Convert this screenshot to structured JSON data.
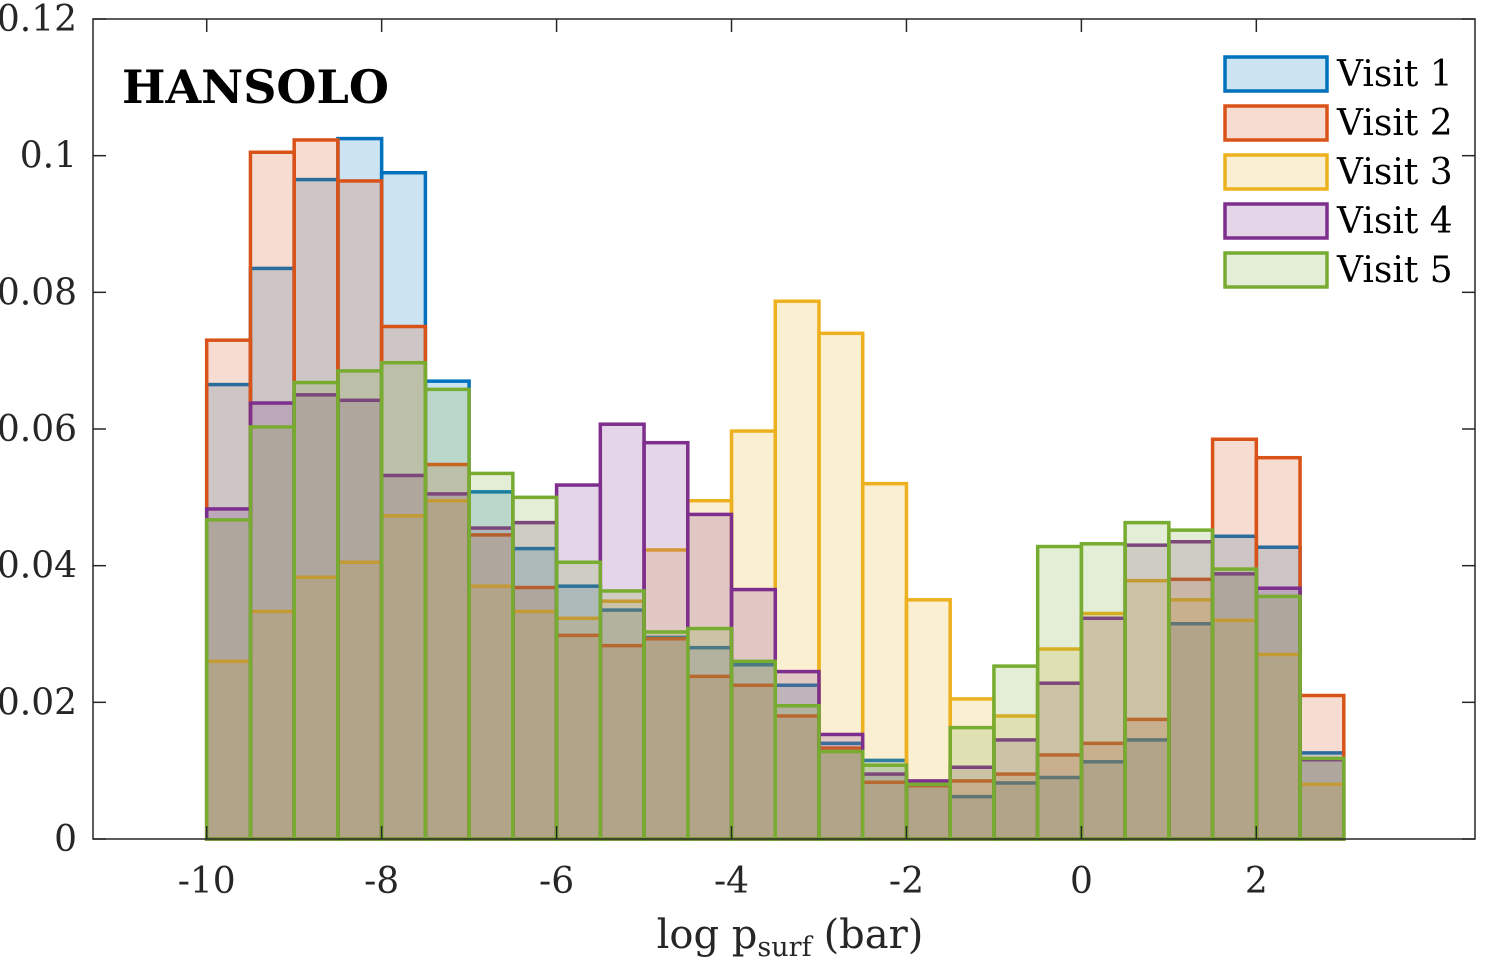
{
  "chart_data": {
    "type": "bar",
    "subtype": "overlaid-histogram",
    "title": "HANSOLO",
    "xlabel": {
      "main": "log p",
      "subscript": "surf",
      "unit": "(bar)"
    },
    "ylabel": "",
    "xlim": [
      -11.3,
      4.5
    ],
    "ylim": [
      0,
      0.12
    ],
    "bin_edges": [
      -10,
      -9.5,
      -9,
      -8.5,
      -8,
      -7.5,
      -7,
      -6.5,
      -6,
      -5.5,
      -5,
      -4.5,
      -4,
      -3.5,
      -3,
      -2.5,
      -2,
      -1.5,
      -1,
      -0.5,
      0,
      0.5,
      1,
      1.5,
      2,
      2.5,
      3
    ],
    "xticks": [
      -10,
      -8,
      -6,
      -4,
      -2,
      0,
      2
    ],
    "xtick_labels": [
      "-10",
      "-8",
      "-6",
      "-4",
      "-2",
      "0",
      "2"
    ],
    "yticks": [
      0,
      0.02,
      0.04,
      0.06,
      0.08,
      0.1,
      0.12
    ],
    "ytick_labels": [
      "0",
      "0.02",
      "0.04",
      "0.06",
      "0.08",
      "0.1",
      "0.12"
    ],
    "legend_position": "top-right",
    "series": [
      {
        "name": "Visit 1",
        "color": "#0072BD",
        "values": [
          0.0665,
          0.0835,
          0.0965,
          0.1025,
          0.0975,
          0.067,
          0.0508,
          0.0425,
          0.037,
          0.0335,
          0.0295,
          0.028,
          0.0255,
          0.0225,
          0.014,
          0.0115,
          0.0078,
          0.0062,
          0.0082,
          0.009,
          0.0113,
          0.0145,
          0.0315,
          0.0443,
          0.0427,
          0.0126
        ]
      },
      {
        "name": "Visit 2",
        "color": "#D95319",
        "values": [
          0.073,
          0.1005,
          0.1023,
          0.0963,
          0.075,
          0.0548,
          0.0445,
          0.0368,
          0.0298,
          0.0283,
          0.0293,
          0.0238,
          0.0225,
          0.018,
          0.0133,
          0.0083,
          0.0078,
          0.0085,
          0.0095,
          0.0123,
          0.014,
          0.0175,
          0.038,
          0.0585,
          0.0558,
          0.021
        ]
      },
      {
        "name": "Visit 3",
        "color": "#EDB120",
        "values": [
          0.026,
          0.0333,
          0.0383,
          0.0405,
          0.0473,
          0.0495,
          0.037,
          0.0333,
          0.0323,
          0.0348,
          0.0423,
          0.0495,
          0.0597,
          0.0787,
          0.074,
          0.052,
          0.035,
          0.0205,
          0.018,
          0.0278,
          0.033,
          0.0378,
          0.035,
          0.032,
          0.027,
          0.008
        ]
      },
      {
        "name": "Visit 4",
        "color": "#7E2F8E",
        "values": [
          0.0483,
          0.0638,
          0.065,
          0.0642,
          0.0532,
          0.0505,
          0.0455,
          0.0463,
          0.0518,
          0.0607,
          0.058,
          0.0475,
          0.0365,
          0.0245,
          0.0153,
          0.0095,
          0.0085,
          0.0105,
          0.0145,
          0.0228,
          0.0323,
          0.043,
          0.0435,
          0.0388,
          0.0367,
          0.0116
        ]
      },
      {
        "name": "Visit 5",
        "color": "#77AC30",
        "values": [
          0.0467,
          0.0603,
          0.0668,
          0.0685,
          0.0697,
          0.0658,
          0.0535,
          0.05,
          0.0405,
          0.0363,
          0.0303,
          0.0308,
          0.026,
          0.0195,
          0.0128,
          0.0108,
          0.008,
          0.0163,
          0.0253,
          0.0428,
          0.0432,
          0.0463,
          0.0452,
          0.0395,
          0.0355,
          0.0118
        ]
      }
    ]
  }
}
